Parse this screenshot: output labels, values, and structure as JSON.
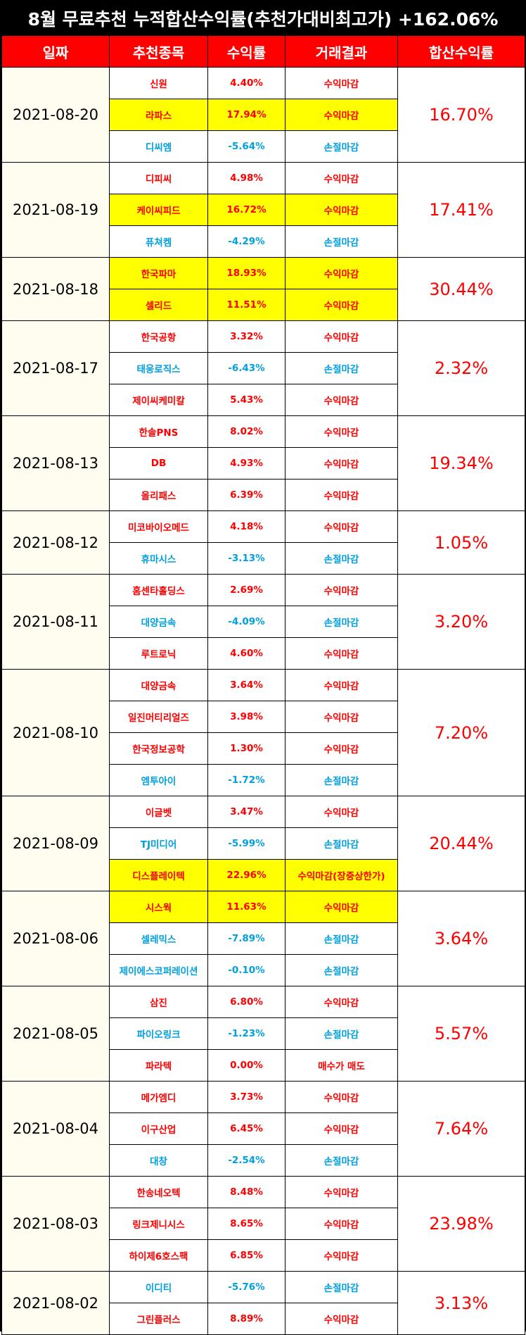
{
  "title": "8월 무료추천 누적합산수익률(추천가대비최고가) +162.06%",
  "colors": {
    "header_bg": "#ff0000",
    "profit": "#ff0000",
    "loss": "#00a0e0",
    "highlight": "#ffff00",
    "date_bg": "#fffcf0"
  },
  "headers": [
    "일짜",
    "추천종목",
    "수익률",
    "거래결과",
    "합산수익률"
  ],
  "groups": [
    {
      "date": "2021-08-20",
      "total": "16.70%",
      "rows": [
        {
          "stock": "신원",
          "rate": "4.40%",
          "result": "수익마감",
          "type": "profit",
          "hl": false
        },
        {
          "stock": "라파스",
          "rate": "17.94%",
          "result": "수익마감",
          "type": "profit",
          "hl": true
        },
        {
          "stock": "디씨엠",
          "rate": "-5.64%",
          "result": "손절마감",
          "type": "loss",
          "hl": false
        }
      ]
    },
    {
      "date": "2021-08-19",
      "total": "17.41%",
      "rows": [
        {
          "stock": "디피씨",
          "rate": "4.98%",
          "result": "수익마감",
          "type": "profit",
          "hl": false
        },
        {
          "stock": "케이씨피드",
          "rate": "16.72%",
          "result": "수익마감",
          "type": "profit",
          "hl": true
        },
        {
          "stock": "퓨쳐켐",
          "rate": "-4.29%",
          "result": "손절마감",
          "type": "loss",
          "hl": false
        }
      ]
    },
    {
      "date": "2021-08-18",
      "total": "30.44%",
      "rows": [
        {
          "stock": "한국파마",
          "rate": "18.93%",
          "result": "수익마감",
          "type": "profit",
          "hl": true
        },
        {
          "stock": "셀리드",
          "rate": "11.51%",
          "result": "수익마감",
          "type": "profit",
          "hl": true
        }
      ]
    },
    {
      "date": "2021-08-17",
      "total": "2.32%",
      "rows": [
        {
          "stock": "한국공항",
          "rate": "3.32%",
          "result": "수익마감",
          "type": "profit",
          "hl": false
        },
        {
          "stock": "태웅로직스",
          "rate": "-6.43%",
          "result": "손절마감",
          "type": "loss",
          "hl": false
        },
        {
          "stock": "제이씨케미칼",
          "rate": "5.43%",
          "result": "수익마감",
          "type": "profit",
          "hl": false
        }
      ]
    },
    {
      "date": "2021-08-13",
      "total": "19.34%",
      "rows": [
        {
          "stock": "한솔PNS",
          "rate": "8.02%",
          "result": "수익마감",
          "type": "profit",
          "hl": false
        },
        {
          "stock": "DB",
          "rate": "4.93%",
          "result": "수익마감",
          "type": "profit",
          "hl": false
        },
        {
          "stock": "올리패스",
          "rate": "6.39%",
          "result": "수익마감",
          "type": "profit",
          "hl": false
        }
      ]
    },
    {
      "date": "2021-08-12",
      "total": "1.05%",
      "rows": [
        {
          "stock": "미코바이오메드",
          "rate": "4.18%",
          "result": "수익마감",
          "type": "profit",
          "hl": false
        },
        {
          "stock": "휴마시스",
          "rate": "-3.13%",
          "result": "손절마감",
          "type": "loss",
          "hl": false
        }
      ]
    },
    {
      "date": "2021-08-11",
      "total": "3.20%",
      "rows": [
        {
          "stock": "홈센타홀딩스",
          "rate": "2.69%",
          "result": "수익마감",
          "type": "profit",
          "hl": false
        },
        {
          "stock": "대양금속",
          "rate": "-4.09%",
          "result": "손절마감",
          "type": "loss",
          "hl": false
        },
        {
          "stock": "루트로닉",
          "rate": "4.60%",
          "result": "수익마감",
          "type": "profit",
          "hl": false
        }
      ]
    },
    {
      "date": "2021-08-10",
      "total": "7.20%",
      "rows": [
        {
          "stock": "대양금속",
          "rate": "3.64%",
          "result": "수익마감",
          "type": "profit",
          "hl": false
        },
        {
          "stock": "일진머티리얼즈",
          "rate": "3.98%",
          "result": "수익마감",
          "type": "profit",
          "hl": false
        },
        {
          "stock": "한국정보공학",
          "rate": "1.30%",
          "result": "수익마감",
          "type": "profit",
          "hl": false
        },
        {
          "stock": "엠투아이",
          "rate": "-1.72%",
          "result": "손절마감",
          "type": "loss",
          "hl": false
        }
      ]
    },
    {
      "date": "2021-08-09",
      "total": "20.44%",
      "rows": [
        {
          "stock": "이글벳",
          "rate": "3.47%",
          "result": "수익마감",
          "type": "profit",
          "hl": false
        },
        {
          "stock": "TJ미디어",
          "rate": "-5.99%",
          "result": "손절마감",
          "type": "loss",
          "hl": false
        },
        {
          "stock": "디스플레이텍",
          "rate": "22.96%",
          "result": "수익마감(장중상한가)",
          "type": "profit",
          "hl": true
        }
      ]
    },
    {
      "date": "2021-08-06",
      "total": "3.64%",
      "rows": [
        {
          "stock": "시스웍",
          "rate": "11.63%",
          "result": "수익마감",
          "type": "profit",
          "hl": true
        },
        {
          "stock": "셀레믹스",
          "rate": "-7.89%",
          "result": "손절마감",
          "type": "loss",
          "hl": false
        },
        {
          "stock": "제이에스코퍼레이션",
          "rate": "-0.10%",
          "result": "손절마감",
          "type": "loss",
          "hl": false
        }
      ]
    },
    {
      "date": "2021-08-05",
      "total": "5.57%",
      "rows": [
        {
          "stock": "삼진",
          "rate": "6.80%",
          "result": "수익마감",
          "type": "profit",
          "hl": false
        },
        {
          "stock": "파이오링크",
          "rate": "-1.23%",
          "result": "손절마감",
          "type": "loss",
          "hl": false
        },
        {
          "stock": "파라텍",
          "rate": "0.00%",
          "result": "매수가 매도",
          "type": "profit",
          "hl": false
        }
      ]
    },
    {
      "date": "2021-08-04",
      "total": "7.64%",
      "rows": [
        {
          "stock": "메가엠디",
          "rate": "3.73%",
          "result": "수익마감",
          "type": "profit",
          "hl": false
        },
        {
          "stock": "이구산업",
          "rate": "6.45%",
          "result": "수익마감",
          "type": "profit",
          "hl": false
        },
        {
          "stock": "대창",
          "rate": "-2.54%",
          "result": "손절마감",
          "type": "loss",
          "hl": false
        }
      ]
    },
    {
      "date": "2021-08-03",
      "total": "23.98%",
      "rows": [
        {
          "stock": "한송네오텍",
          "rate": "8.48%",
          "result": "수익마감",
          "type": "profit",
          "hl": false
        },
        {
          "stock": "링크제니시스",
          "rate": "8.65%",
          "result": "수익마감",
          "type": "profit",
          "hl": false
        },
        {
          "stock": "하이제6호스팩",
          "rate": "6.85%",
          "result": "수익마감",
          "type": "profit",
          "hl": false
        }
      ]
    },
    {
      "date": "2021-08-02",
      "total": "3.13%",
      "rows": [
        {
          "stock": "이디티",
          "rate": "-5.76%",
          "result": "손절마감",
          "type": "loss",
          "hl": false
        },
        {
          "stock": "그린플러스",
          "rate": "8.89%",
          "result": "수익마감",
          "type": "profit",
          "hl": false
        }
      ]
    }
  ]
}
